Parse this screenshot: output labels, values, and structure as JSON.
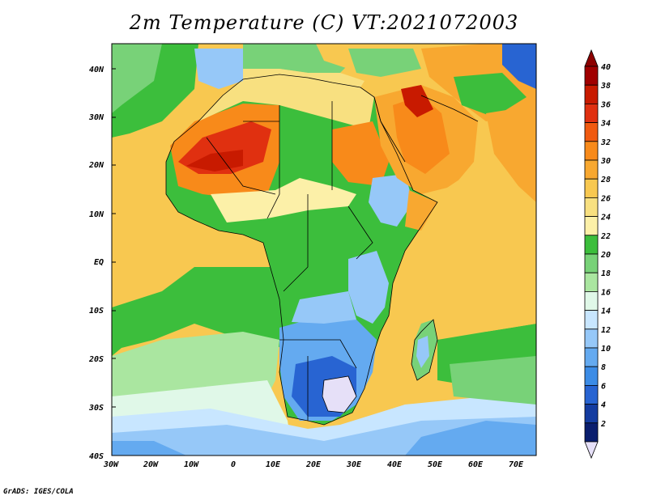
{
  "title": "2m Temperature (C) VT:2021072003",
  "footer": "GrADS: IGES/COLA",
  "map": {
    "lat_labels": [
      "40N",
      "30N",
      "20N",
      "10N",
      "EQ",
      "10S",
      "20S",
      "30S",
      "40S"
    ],
    "lon_labels": [
      "30W",
      "20W",
      "10W",
      "0",
      "10E",
      "20E",
      "30E",
      "40E",
      "50E",
      "60E",
      "70E"
    ],
    "extent": {
      "lon_min": -30,
      "lon_max": 75,
      "lat_min": -40,
      "lat_max": 45
    }
  },
  "colorbar": {
    "labels": [
      "40",
      "38",
      "36",
      "34",
      "32",
      "30",
      "28",
      "26",
      "24",
      "22",
      "20",
      "18",
      "16",
      "14",
      "12",
      "10",
      "8",
      "6",
      "4",
      "2"
    ],
    "colors": [
      "#a00000",
      "#c81a00",
      "#e03010",
      "#f05a10",
      "#f88a1a",
      "#f8a830",
      "#f8c850",
      "#f8e080",
      "#fcf0a8",
      "#3cbe3c",
      "#78d278",
      "#aae6a0",
      "#e0f8e8",
      "#c8e6ff",
      "#96c8f8",
      "#64aaf0",
      "#3c8ce6",
      "#2864d2",
      "#143ca0",
      "#0a1e6e"
    ],
    "low_color": "#e6e0f8",
    "high_color": "#8c0000"
  }
}
